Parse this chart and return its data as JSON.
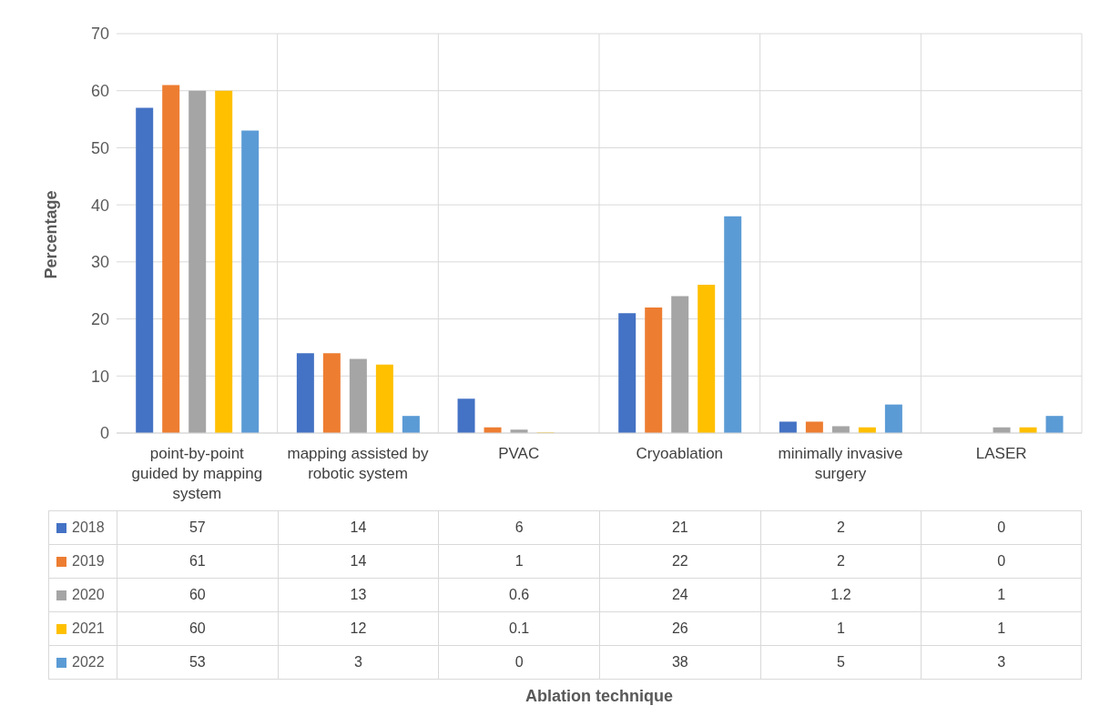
{
  "chart_data": {
    "type": "bar",
    "annotations": [
      "Ablation technique"
    ],
    "ylabel": "Percentage",
    "categories": [
      "point-by-point guided by mapping system",
      "mapping assisted by robotic system",
      "PVAC",
      "Cryoablation",
      "minimally invasive surgery",
      "LASER"
    ],
    "series": [
      {
        "name": "2018",
        "color": "#4472c4",
        "values": [
          57,
          14,
          6,
          21,
          2,
          0
        ]
      },
      {
        "name": "2019",
        "color": "#ed7d31",
        "values": [
          61,
          14,
          1,
          22,
          2,
          0
        ]
      },
      {
        "name": "2020",
        "color": "#a5a5a5",
        "values": [
          60,
          13,
          0.6,
          24,
          1.2,
          1
        ]
      },
      {
        "name": "2021",
        "color": "#ffc000",
        "values": [
          60,
          12,
          0.1,
          26,
          1,
          1
        ]
      },
      {
        "name": "2022",
        "color": "#5b9bd5",
        "values": [
          53,
          3,
          0,
          38,
          5,
          3
        ]
      }
    ],
    "ylim": [
      0,
      70
    ],
    "yticks": [
      0,
      10,
      20,
      30,
      40,
      50,
      60,
      70
    ],
    "grid": true,
    "legend": "bottom",
    "data_labels": true
  }
}
